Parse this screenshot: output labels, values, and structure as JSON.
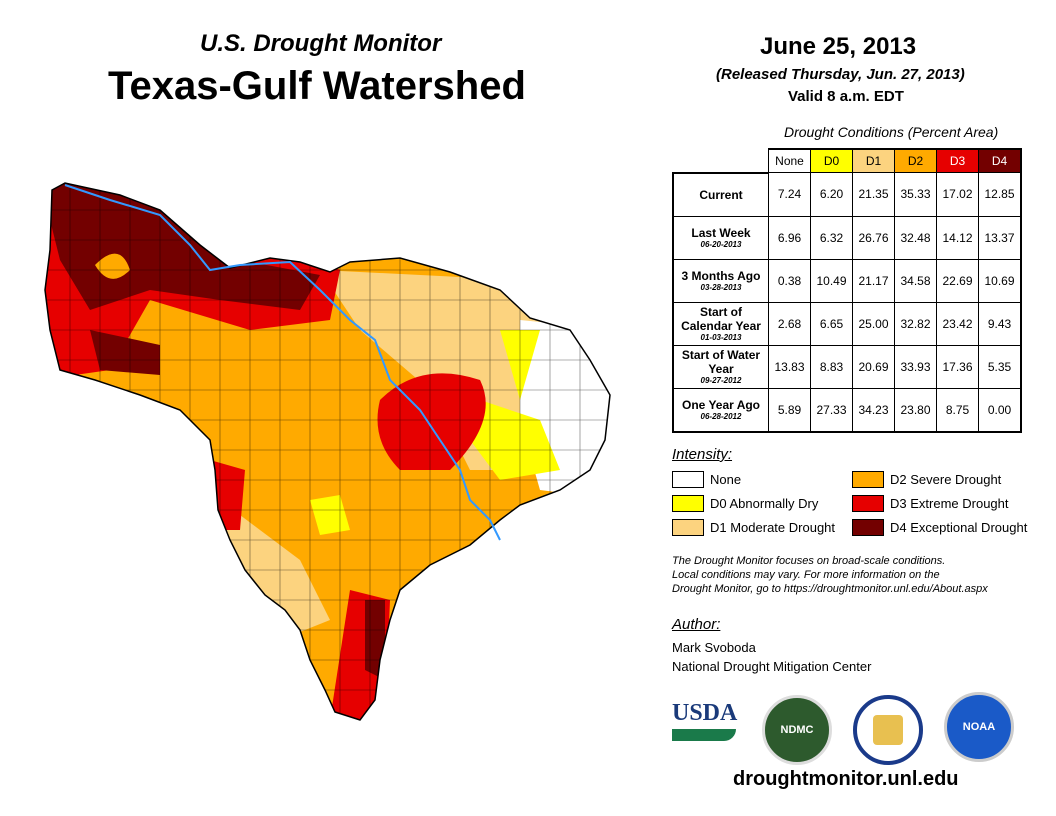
{
  "header": {
    "subtitle": "U.S. Drought Monitor",
    "title": "Texas-Gulf Watershed",
    "date": "June 25, 2013",
    "released": "(Released Thursday, Jun. 27, 2013)",
    "valid": "Valid 8 a.m. EDT"
  },
  "table": {
    "caption": "Drought Conditions (Percent Area)",
    "columns": [
      "None",
      "D0",
      "D1",
      "D2",
      "D3",
      "D4"
    ],
    "column_colors": [
      "#ffffff",
      "#ffff00",
      "#fcd37f",
      "#ffaa00",
      "#e60000",
      "#730000"
    ],
    "rows": [
      {
        "label": "Current",
        "date": "",
        "values": [
          "7.24",
          "6.20",
          "21.35",
          "35.33",
          "17.02",
          "12.85"
        ]
      },
      {
        "label": "Last Week",
        "date": "06-20-2013",
        "values": [
          "6.96",
          "6.32",
          "26.76",
          "32.48",
          "14.12",
          "13.37"
        ]
      },
      {
        "label": "3 Months Ago",
        "date": "03-28-2013",
        "values": [
          "0.38",
          "10.49",
          "21.17",
          "34.58",
          "22.69",
          "10.69"
        ]
      },
      {
        "label": "Start of Calendar Year",
        "date": "01-03-2013",
        "values": [
          "2.68",
          "6.65",
          "25.00",
          "32.82",
          "23.42",
          "9.43"
        ]
      },
      {
        "label": "Start of Water Year",
        "date": "09-27-2012",
        "values": [
          "13.83",
          "8.83",
          "20.69",
          "33.93",
          "17.36",
          "5.35"
        ]
      },
      {
        "label": "One Year Ago",
        "date": "06-28-2012",
        "values": [
          "5.89",
          "27.33",
          "34.23",
          "23.80",
          "8.75",
          "0.00"
        ]
      }
    ]
  },
  "legend": {
    "title": "Intensity:",
    "items": [
      {
        "label": "None",
        "color": "#ffffff"
      },
      {
        "label": "D0 Abnormally Dry",
        "color": "#ffff00"
      },
      {
        "label": "D1 Moderate Drought",
        "color": "#fcd37f"
      },
      {
        "label": "D2 Severe Drought",
        "color": "#ffaa00"
      },
      {
        "label": "D3 Extreme Drought",
        "color": "#e60000"
      },
      {
        "label": "D4 Exceptional Drought",
        "color": "#730000"
      }
    ]
  },
  "note": [
    "The Drought Monitor focuses on broad-scale conditions.",
    "Local conditions may vary. For more information on the",
    "Drought Monitor, go to https://droughtmonitor.unl.edu/About.aspx"
  ],
  "author": {
    "title": "Author:",
    "name": "Mark Svoboda",
    "org": "National Drought Mitigation Center"
  },
  "logos": {
    "usda": "USDA",
    "ndmc": "NDMC",
    "noaa": "NOAA"
  },
  "url": "droughtmonitor.unl.edu"
}
